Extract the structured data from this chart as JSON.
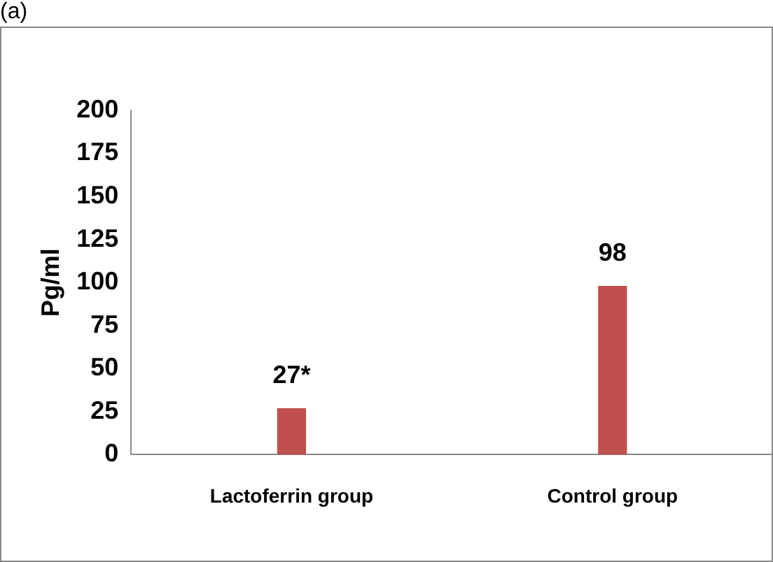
{
  "chart_data": {
    "type": "bar",
    "ylabel": "Pg/ml",
    "annotations": [
      "(a)"
    ],
    "categories": [
      "Lactoferrin group",
      "Control group"
    ],
    "values": [
      27,
      98
    ],
    "value_labels": [
      "27*",
      "98"
    ],
    "color": "#c0504d",
    "ylim": [
      0,
      200
    ],
    "yticks": [
      0,
      25,
      50,
      75,
      100,
      125,
      150,
      175,
      200
    ],
    "grid": false,
    "legend": false
  }
}
